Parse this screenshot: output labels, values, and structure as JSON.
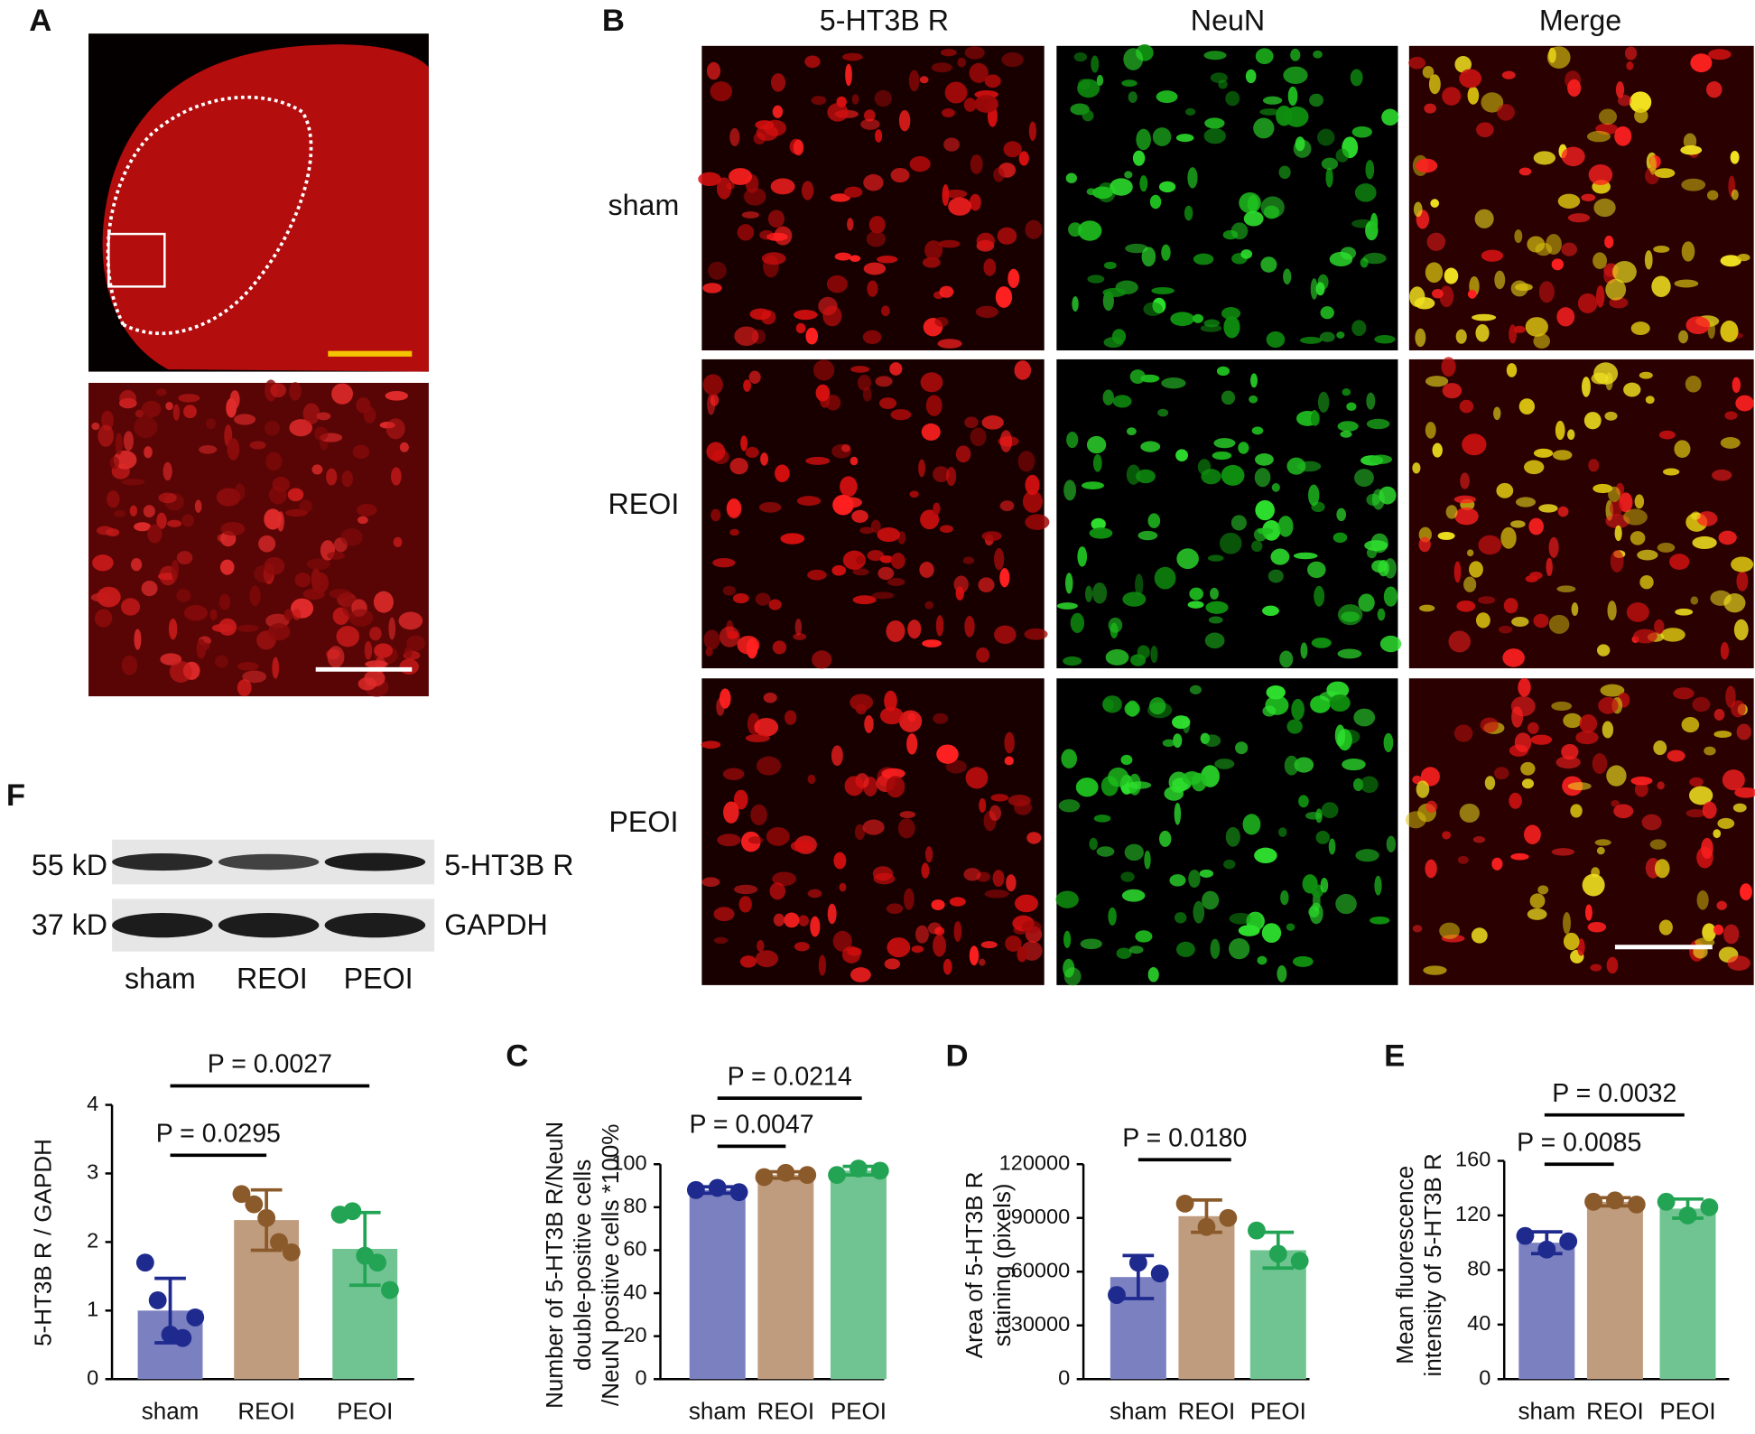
{
  "figure": {
    "panel_a": {
      "label": "A"
    },
    "panel_b": {
      "label": "B",
      "columns": [
        "5-HT3B R",
        "NeuN",
        "Merge"
      ],
      "column_colors": [
        "#e8202a",
        "#2db04b",
        "#f0b01a"
      ],
      "rows": [
        "sham",
        "REOI",
        "PEOI"
      ]
    },
    "panel_f": {
      "label": "F",
      "markers": [
        "55 kD",
        "37 kD"
      ],
      "targets": [
        "5-HT3B R",
        "GAPDH"
      ],
      "lanes": [
        "sham",
        "REOI",
        "PEOI"
      ]
    }
  },
  "chart_data": [
    {
      "type": "bar",
      "y_label": [
        "5-HT3B R / GAPDH"
      ],
      "categories": [
        "sham",
        "REOI",
        "PEOI"
      ],
      "values": [
        1.0,
        2.32,
        1.9
      ],
      "errors": [
        0.47,
        0.44,
        0.53
      ],
      "points": [
        [
          1.7,
          1.15,
          0.65,
          0.6,
          0.9
        ],
        [
          2.7,
          2.55,
          2.35,
          2.0,
          1.85
        ],
        [
          2.4,
          2.45,
          1.8,
          1.7,
          1.3
        ]
      ],
      "colors": [
        "#7b80c0",
        "#c09c7e",
        "#6fc491"
      ],
      "point_colors": [
        "#1f2a8f",
        "#8b5a2b",
        "#23a454"
      ],
      "ylim": [
        0,
        4
      ],
      "yticks": [
        0,
        1,
        2,
        3,
        4
      ],
      "annotations": [
        "P = 0.0295",
        "P = 0.0027"
      ]
    },
    {
      "type": "bar",
      "panel": "C",
      "y_label": [
        "Number of 5-HT3B R/NeuN",
        "double-positive cells",
        "/NeuN positive cells  *100%"
      ],
      "categories": [
        "sham",
        "REOI",
        "PEOI"
      ],
      "values": [
        88,
        95,
        97
      ],
      "errors": [
        1.5,
        1.5,
        2
      ],
      "points": [
        [
          88,
          89,
          87
        ],
        [
          94,
          96,
          95
        ],
        [
          95,
          98,
          97
        ]
      ],
      "colors": [
        "#7b80c0",
        "#c09c7e",
        "#6fc491"
      ],
      "point_colors": [
        "#1f2a8f",
        "#8b5a2b",
        "#23a454"
      ],
      "ylim": [
        0,
        100
      ],
      "yticks": [
        0,
        20,
        40,
        60,
        80,
        100
      ],
      "annotations": [
        "P = 0.0047",
        "P = 0.0214"
      ]
    },
    {
      "type": "bar",
      "panel": "D",
      "y_label": [
        "Area of 5-HT3B R",
        "staining (pixels)"
      ],
      "categories": [
        "sham",
        "REOI",
        "PEOI"
      ],
      "values": [
        57000,
        91000,
        72000
      ],
      "errors": [
        12000,
        9000,
        10000
      ],
      "points": [
        [
          47000,
          65000,
          59000
        ],
        [
          98000,
          85000,
          90000
        ],
        [
          83000,
          70000,
          66000
        ]
      ],
      "colors": [
        "#7b80c0",
        "#c09c7e",
        "#6fc491"
      ],
      "point_colors": [
        "#1f2a8f",
        "#8b5a2b",
        "#23a454"
      ],
      "ylim": [
        0,
        120000
      ],
      "yticks": [
        0,
        30000,
        60000,
        90000,
        120000
      ],
      "annotations": [
        "P = 0.0180"
      ]
    },
    {
      "type": "bar",
      "panel": "E",
      "y_label": [
        "Mean fluorescence",
        "intensity of 5-HT3B R"
      ],
      "categories": [
        "sham",
        "REOI",
        "PEOI"
      ],
      "values": [
        100,
        130,
        125
      ],
      "errors": [
        8,
        3,
        7
      ],
      "points": [
        [
          105,
          95,
          101
        ],
        [
          130,
          131,
          128
        ],
        [
          130,
          120,
          126
        ]
      ],
      "colors": [
        "#7b80c0",
        "#c09c7e",
        "#6fc491"
      ],
      "point_colors": [
        "#1f2a8f",
        "#8b5a2b",
        "#23a454"
      ],
      "ylim": [
        0,
        160
      ],
      "yticks": [
        0,
        40,
        80,
        120,
        160
      ],
      "annotations": [
        "P = 0.0085",
        "P = 0.0032"
      ]
    }
  ]
}
